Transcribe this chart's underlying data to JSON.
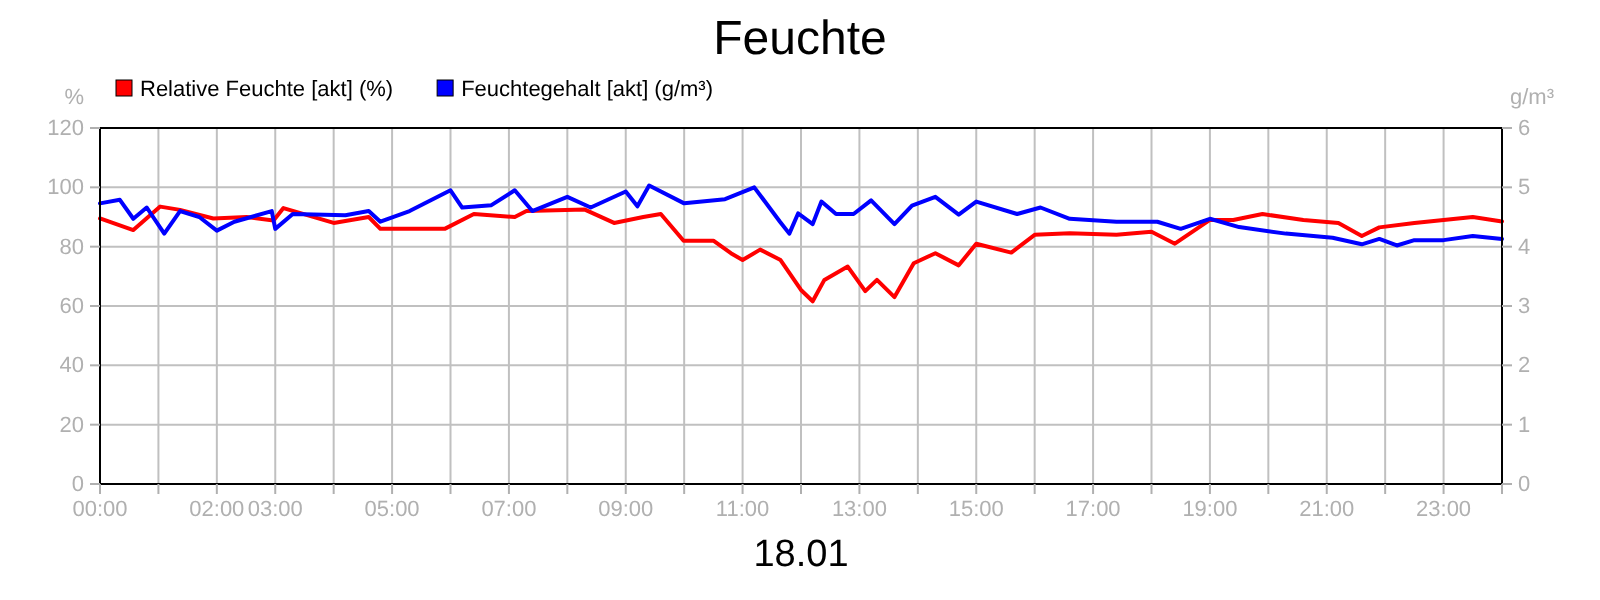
{
  "chart_data": {
    "type": "line",
    "title": "Feuchte",
    "xlabel": "18.01",
    "ylabel": "%",
    "y2label": "g/m³",
    "xlim": [
      0,
      24
    ],
    "xticks": [
      {
        "value": 0,
        "label": "00:00"
      },
      {
        "value": 1,
        "label": null
      },
      {
        "value": 2,
        "label": "02:00"
      },
      {
        "value": 3,
        "label": "03:00"
      },
      {
        "value": 4,
        "label": null
      },
      {
        "value": 5,
        "label": "05:00"
      },
      {
        "value": 6,
        "label": null
      },
      {
        "value": 7,
        "label": "07:00"
      },
      {
        "value": 8,
        "label": null
      },
      {
        "value": 9,
        "label": "09:00"
      },
      {
        "value": 10,
        "label": null
      },
      {
        "value": 11,
        "label": "11:00"
      },
      {
        "value": 12,
        "label": null
      },
      {
        "value": 13,
        "label": "13:00"
      },
      {
        "value": 14,
        "label": null
      },
      {
        "value": 15,
        "label": "15:00"
      },
      {
        "value": 16,
        "label": null
      },
      {
        "value": 17,
        "label": "17:00"
      },
      {
        "value": 18,
        "label": null
      },
      {
        "value": 19,
        "label": "19:00"
      },
      {
        "value": 20,
        "label": null
      },
      {
        "value": 21,
        "label": "21:00"
      },
      {
        "value": 22,
        "label": null
      },
      {
        "value": 23,
        "label": "23:00"
      },
      {
        "value": 24,
        "label": null
      }
    ],
    "ylim": [
      0,
      120
    ],
    "yticks": [
      0,
      20,
      40,
      60,
      80,
      100,
      120
    ],
    "y2lim": [
      0,
      6
    ],
    "y2ticks": [
      0,
      1,
      2,
      3,
      4,
      5,
      6
    ],
    "grid": true,
    "legend": "top left",
    "marker": "none",
    "line_style": "solid",
    "series": [
      {
        "name": "Relative Feuchte [akt] (%)",
        "color": "#ff0000",
        "x": [
          0,
          0.57,
          1.03,
          1.37,
          1.94,
          2.51,
          2.97,
          3.14,
          4.0,
          4.6,
          4.8,
          5.9,
          6.4,
          7.1,
          7.3,
          8.3,
          8.8,
          9.3,
          9.6,
          9.99,
          10.5,
          10.8,
          11.0,
          11.3,
          11.65,
          12.0,
          12.2,
          12.4,
          12.8,
          13.1,
          13.3,
          13.6,
          13.93,
          14.3,
          14.7,
          15.0,
          15.6,
          16.0,
          16.6,
          17.4,
          18.0,
          18.4,
          19.0,
          19.4,
          19.9,
          20.6,
          21.2,
          21.6,
          21.9,
          22.5,
          23.5,
          24
        ],
        "values": [
          89.5,
          85.6,
          93.5,
          92.4,
          89.5,
          90,
          88.8,
          93,
          88,
          90,
          86,
          86,
          91,
          90,
          92,
          92.5,
          88,
          90,
          91,
          82,
          82,
          77.8,
          75.5,
          79,
          75.5,
          65.4,
          61.6,
          68.8,
          73.3,
          65,
          68.8,
          63,
          74.4,
          77.8,
          73.7,
          81,
          78,
          84,
          84.5,
          84,
          85,
          81,
          89,
          89,
          91,
          89,
          88,
          83.6,
          86.5,
          88,
          90,
          88.5
        ]
      },
      {
        "name": "Feuchtegehalt [akt] (g/m³)",
        "color": "#0000ff",
        "axis": "y2",
        "x": [
          0,
          0.34,
          0.57,
          0.8,
          1.1,
          1.37,
          1.7,
          2.0,
          2.3,
          2.94,
          3.0,
          3.3,
          4.2,
          4.6,
          4.8,
          5.3,
          6.0,
          6.2,
          6.7,
          7.1,
          7.4,
          8.0,
          8.4,
          9.0,
          9.2,
          9.4,
          10.0,
          10.7,
          11.2,
          11.64,
          11.8,
          11.95,
          12.2,
          12.35,
          12.6,
          12.9,
          13.2,
          13.6,
          13.9,
          14.3,
          14.7,
          15.0,
          15.7,
          16.1,
          16.6,
          17.4,
          18.1,
          18.5,
          19.0,
          19.5,
          20.3,
          21.1,
          21.6,
          21.9,
          22.2,
          22.5,
          23.0,
          23.5,
          24
        ],
        "values": [
          4.73,
          4.79,
          4.47,
          4.66,
          4.22,
          4.6,
          4.5,
          4.27,
          4.42,
          4.6,
          4.3,
          4.55,
          4.53,
          4.6,
          4.42,
          4.6,
          4.95,
          4.66,
          4.7,
          4.95,
          4.6,
          4.84,
          4.66,
          4.93,
          4.68,
          5.03,
          4.73,
          4.8,
          5.0,
          4.42,
          4.22,
          4.56,
          4.38,
          4.76,
          4.55,
          4.55,
          4.78,
          4.38,
          4.69,
          4.84,
          4.54,
          4.76,
          4.55,
          4.66,
          4.47,
          4.42,
          4.42,
          4.3,
          4.47,
          4.33,
          4.22,
          4.15,
          4.04,
          4.13,
          4.02,
          4.11,
          4.11,
          4.18,
          4.13
        ]
      }
    ]
  }
}
